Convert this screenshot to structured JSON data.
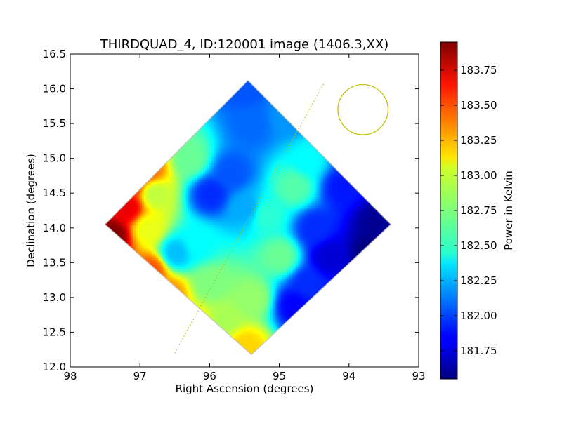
{
  "chart_data": {
    "type": "heatmap",
    "title": "THIRDQUAD_4, ID:120001 image (1406.3,XX)",
    "xlabel": "Right Ascension (degrees)",
    "ylabel": "Declination (degrees)",
    "xlim": [
      98,
      93
    ],
    "ylim": [
      12.0,
      16.5
    ],
    "x_ticks": [
      98,
      97,
      96,
      95,
      94,
      93
    ],
    "x_tick_labels": [
      "98",
      "97",
      "96",
      "95",
      "94",
      "93"
    ],
    "y_ticks": [
      12.0,
      12.5,
      13.0,
      13.5,
      14.0,
      14.5,
      15.0,
      15.5,
      16.0,
      16.5
    ],
    "y_tick_labels": [
      "12.0",
      "12.5",
      "13.0",
      "13.5",
      "14.0",
      "14.5",
      "15.0",
      "15.5",
      "16.0",
      "16.5"
    ],
    "colormap": "jet",
    "colorbar": {
      "label": "Power in Kelvin",
      "vmin": 181.55,
      "vmax": 183.95,
      "ticks": [
        181.75,
        182.0,
        182.25,
        182.5,
        182.75,
        183.0,
        183.25,
        183.5,
        183.75
      ],
      "tick_labels": [
        "181.75",
        "182.00",
        "182.25",
        "182.50",
        "182.75",
        "183.00",
        "183.25",
        "183.50",
        "183.75"
      ]
    },
    "footprint_diamond": {
      "top": {
        "ra": 95.45,
        "dec": 16.12
      },
      "right": {
        "ra": 93.4,
        "dec": 14.05
      },
      "bottom": {
        "ra": 95.4,
        "dec": 12.18
      },
      "left": {
        "ra": 97.5,
        "dec": 14.05
      }
    },
    "beam_circle": {
      "ra": 93.8,
      "dec": 15.7,
      "radius_deg": 0.36,
      "color": "#bfbf00"
    },
    "dotted_line": {
      "start": {
        "ra": 96.5,
        "dec": 12.2
      },
      "end": {
        "ra": 94.35,
        "dec": 16.1
      },
      "color": "#bfbf00"
    },
    "features": [
      {
        "ra": 97.4,
        "dec": 13.9,
        "value": 183.95
      },
      {
        "ra": 97.2,
        "dec": 14.3,
        "value": 183.7
      },
      {
        "ra": 97.15,
        "dec": 14.65,
        "value": 183.55
      },
      {
        "ra": 96.9,
        "dec": 14.85,
        "value": 183.4
      },
      {
        "ra": 96.85,
        "dec": 13.4,
        "value": 183.45
      },
      {
        "ra": 96.6,
        "dec": 13.05,
        "value": 183.3
      },
      {
        "ra": 96.2,
        "dec": 12.6,
        "value": 183.1
      },
      {
        "ra": 95.5,
        "dec": 12.3,
        "value": 183.15
      },
      {
        "ra": 96.9,
        "dec": 14.0,
        "value": 183.0
      },
      {
        "ra": 96.8,
        "dec": 14.5,
        "value": 182.9
      },
      {
        "ra": 96.3,
        "dec": 15.0,
        "value": 182.7
      },
      {
        "ra": 96.0,
        "dec": 13.2,
        "value": 182.75
      },
      {
        "ra": 95.4,
        "dec": 13.0,
        "value": 182.8
      },
      {
        "ra": 95.8,
        "dec": 12.7,
        "value": 182.85
      },
      {
        "ra": 95.0,
        "dec": 13.6,
        "value": 182.7
      },
      {
        "ra": 95.2,
        "dec": 14.2,
        "value": 182.55
      },
      {
        "ra": 94.8,
        "dec": 14.6,
        "value": 182.65
      },
      {
        "ra": 94.6,
        "dec": 15.0,
        "value": 182.45
      },
      {
        "ra": 96.2,
        "dec": 13.8,
        "value": 182.45
      },
      {
        "ra": 96.5,
        "dec": 13.65,
        "value": 182.3
      },
      {
        "ra": 95.7,
        "dec": 14.8,
        "value": 182.05
      },
      {
        "ra": 96.0,
        "dec": 14.5,
        "value": 181.95
      },
      {
        "ra": 95.4,
        "dec": 15.5,
        "value": 182.1
      },
      {
        "ra": 95.5,
        "dec": 16.0,
        "value": 182.05
      },
      {
        "ra": 94.9,
        "dec": 15.6,
        "value": 182.2
      },
      {
        "ra": 95.5,
        "dec": 14.3,
        "value": 182.25
      },
      {
        "ra": 94.1,
        "dec": 14.6,
        "value": 181.9
      },
      {
        "ra": 93.6,
        "dec": 14.1,
        "value": 181.6
      },
      {
        "ra": 93.7,
        "dec": 13.65,
        "value": 181.55
      },
      {
        "ra": 94.3,
        "dec": 13.6,
        "value": 181.75
      },
      {
        "ra": 94.6,
        "dec": 13.2,
        "value": 181.95
      },
      {
        "ra": 94.8,
        "dec": 12.9,
        "value": 181.85
      },
      {
        "ra": 94.5,
        "dec": 14.0,
        "value": 181.95
      },
      {
        "ra": 93.9,
        "dec": 15.0,
        "value": 182.0
      }
    ]
  }
}
